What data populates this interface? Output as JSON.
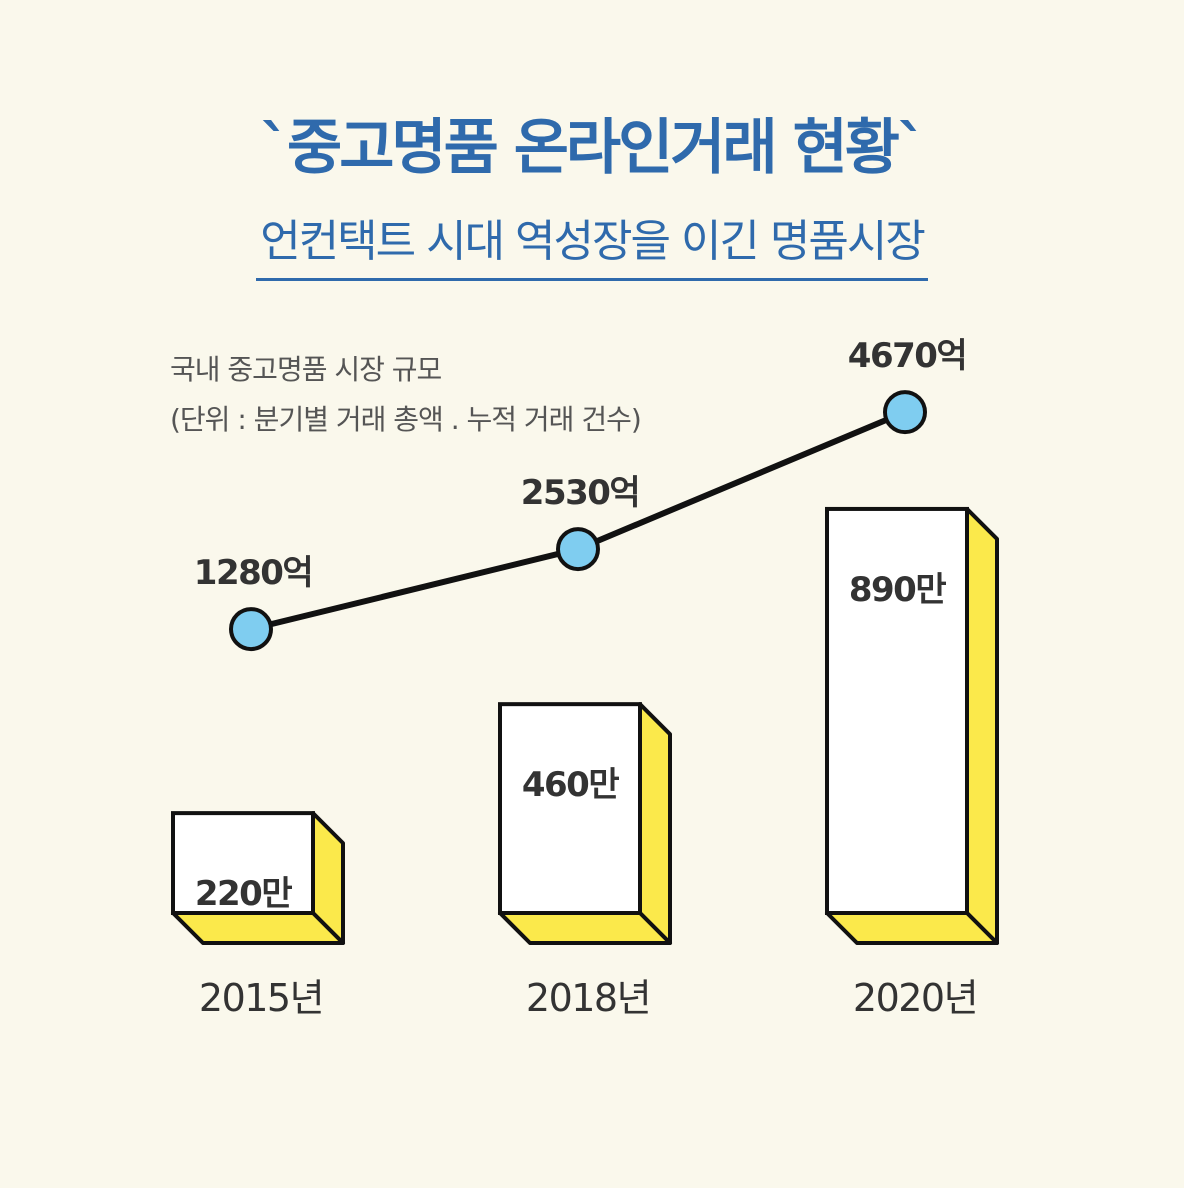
{
  "title": "`중고명품 온라인거래 현황`",
  "subtitle": "언컨택트 시대 역성장을 이긴 명품시장",
  "chart_label_line1": "국내 중고명품 시장 규모",
  "chart_label_line2": "(단위 : 분기별 거래 총액 . 누적 거래 건수)",
  "colors": {
    "title": "#2f6aac",
    "background": "#faf8ec",
    "bar_front": "#ffffff",
    "bar_side": "#fbe94b",
    "marker": "#7fcdf0",
    "line": "#111111"
  },
  "chart_data": {
    "type": "bar+line",
    "categories": [
      "2015년",
      "2018년",
      "2020년"
    ],
    "series": [
      {
        "name": "누적 거래 건수",
        "kind": "bar",
        "values": [
          220,
          460,
          890
        ],
        "unit": "만",
        "labels": [
          "220만",
          "460만",
          "890만"
        ]
      },
      {
        "name": "분기별 거래 총액",
        "kind": "line",
        "values": [
          1280,
          2530,
          4670
        ],
        "unit": "억",
        "labels": [
          "1280억",
          "2530억",
          "4670억"
        ]
      }
    ],
    "title": "국내 중고명품 시장 규모",
    "note": "(단위 : 분기별 거래 총액 . 누적 거래 건수)"
  }
}
